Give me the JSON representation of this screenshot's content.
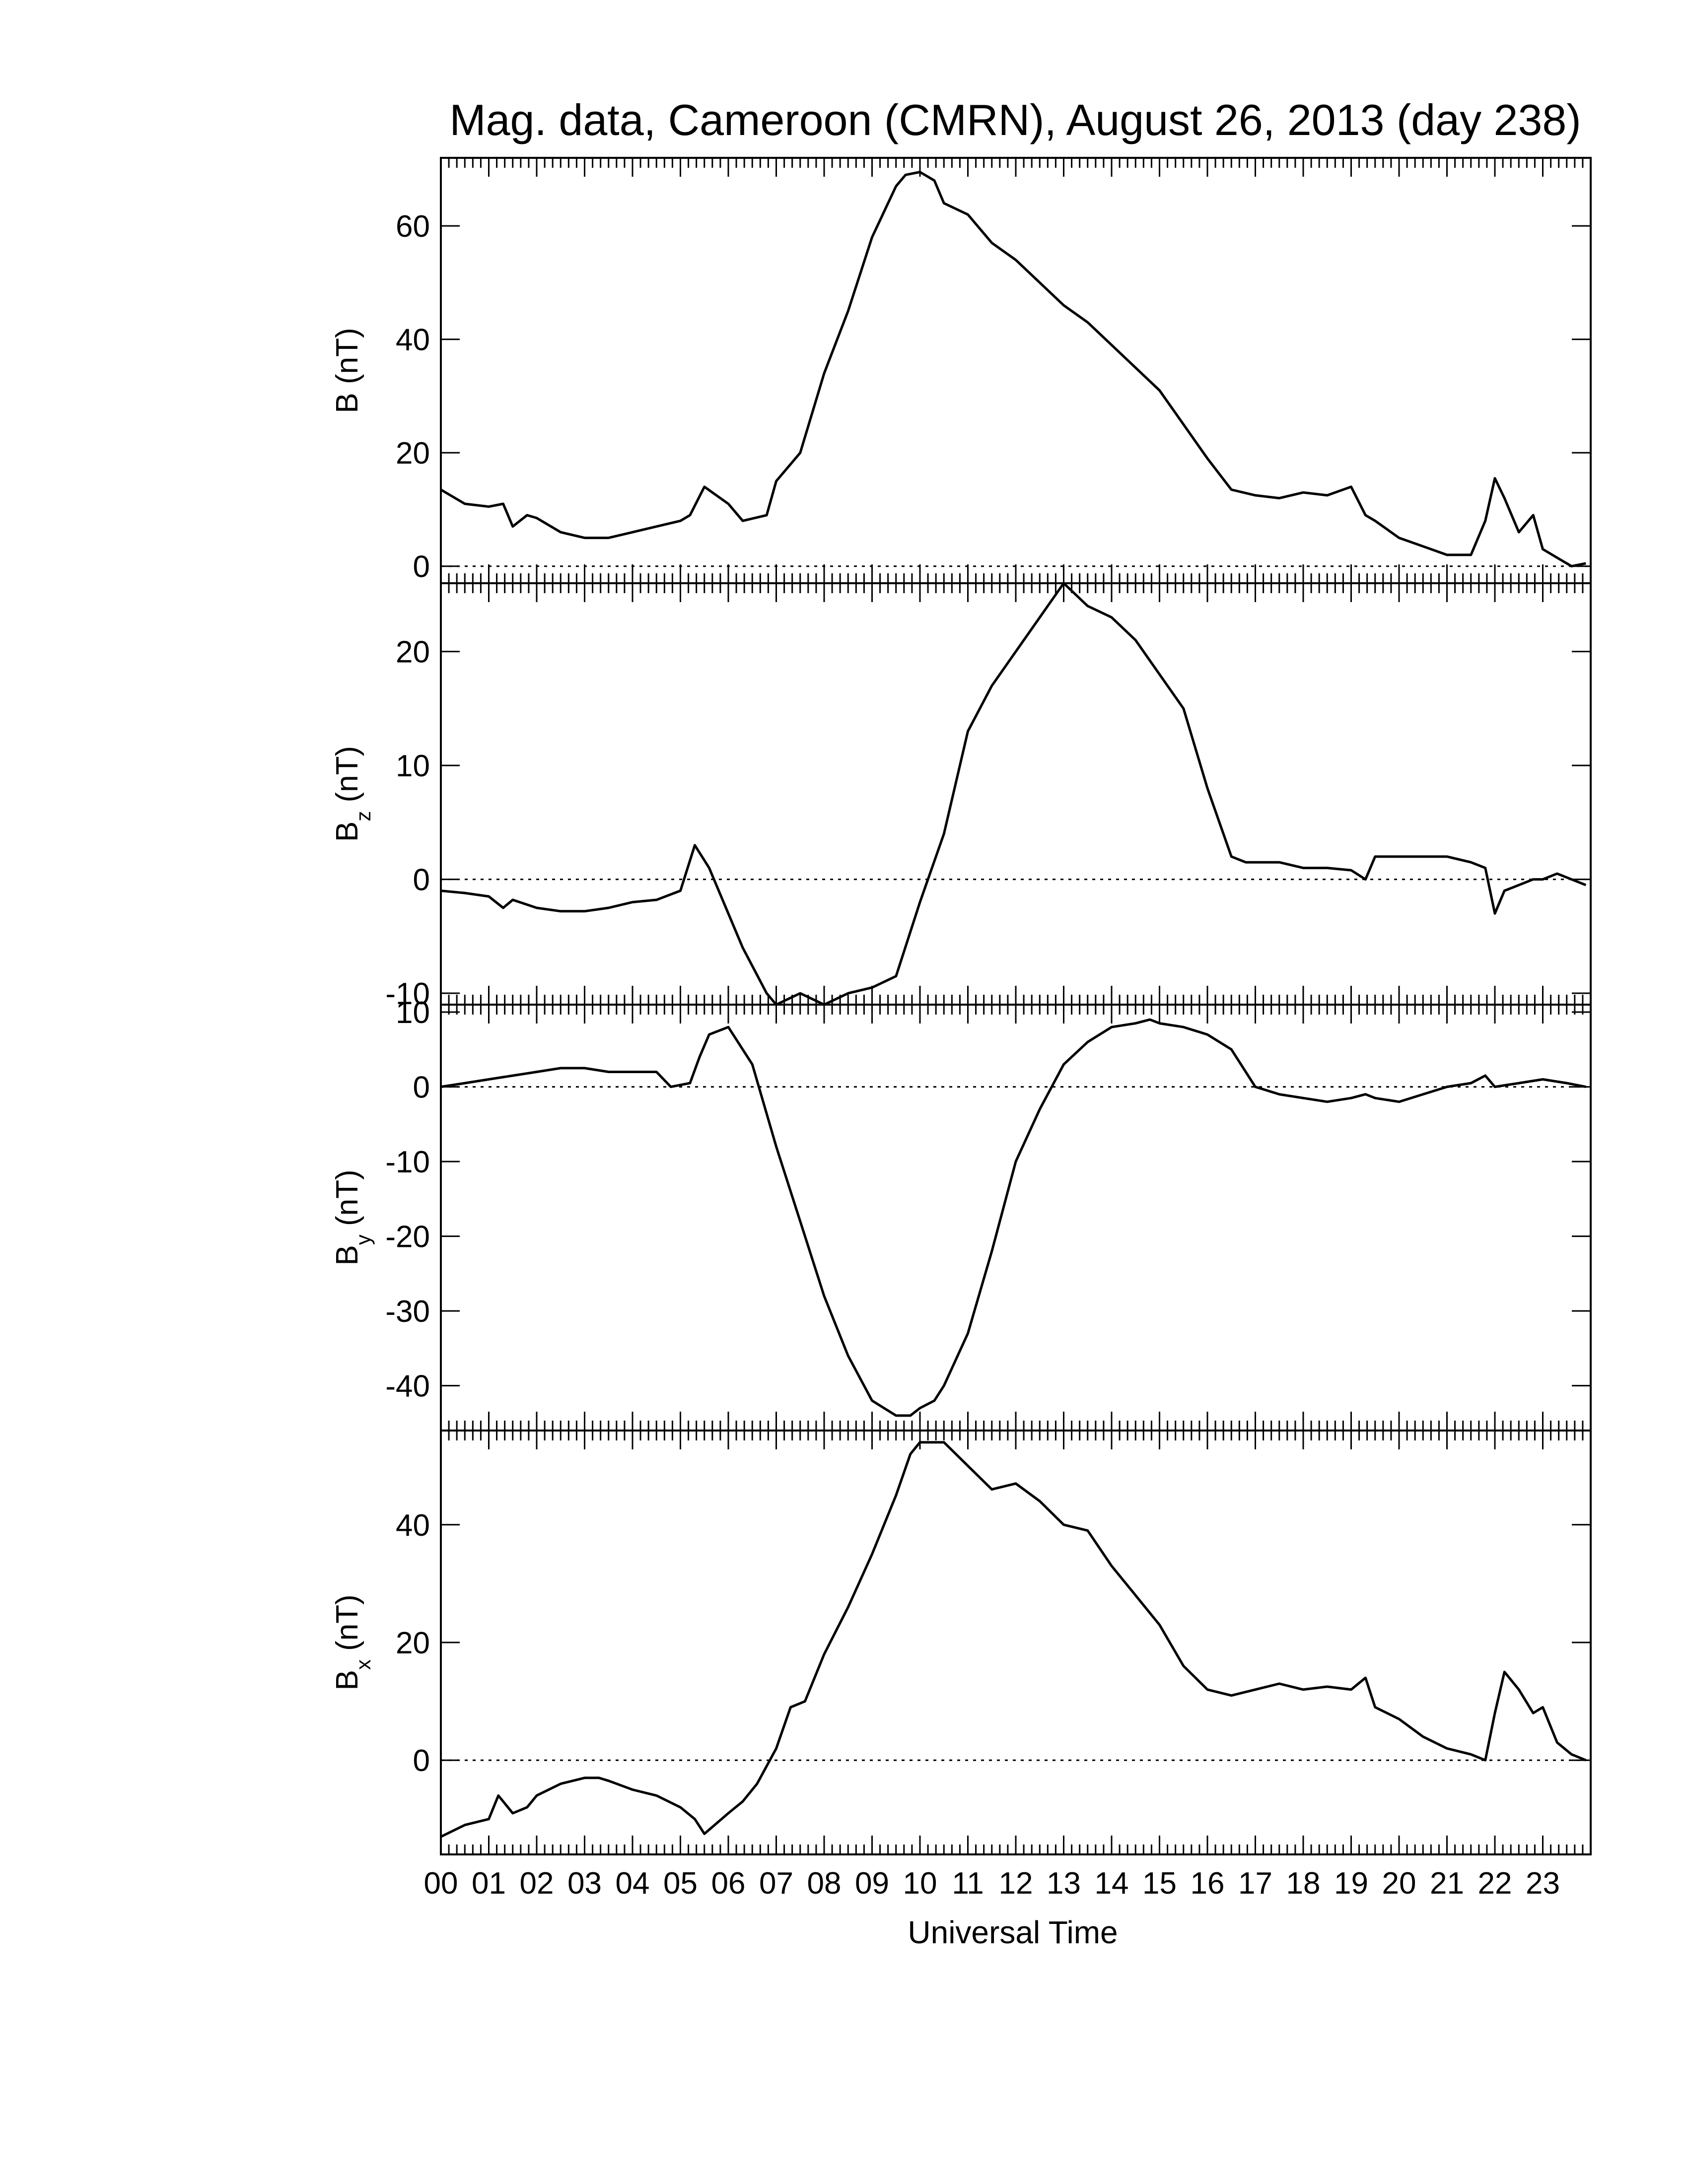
{
  "title": "Mag. data, Cameroon (CMRN), August 26, 2013 (day 238)",
  "xlabel": "Universal Time",
  "x_tick_labels": [
    "00",
    "01",
    "02",
    "03",
    "04",
    "05",
    "06",
    "07",
    "08",
    "09",
    "10",
    "11",
    "12",
    "13",
    "14",
    "15",
    "16",
    "17",
    "18",
    "19",
    "20",
    "21",
    "22",
    "23"
  ],
  "chart_data": [
    {
      "type": "line",
      "ylabel": "B (nT)",
      "ylabel_main": "B",
      "ylabel_sub": "",
      "ylabel_unit": " (nT)",
      "xlim": [
        0,
        24
      ],
      "ylim": [
        -3,
        72
      ],
      "yticks": [
        0,
        20,
        40,
        60
      ],
      "x": [
        0,
        0.5,
        1,
        1.3,
        1.5,
        1.8,
        2,
        2.5,
        3,
        3.5,
        4,
        4.5,
        5,
        5.2,
        5.5,
        6,
        6.3,
        6.8,
        7,
        7.5,
        8,
        8.5,
        9,
        9.5,
        9.7,
        10,
        10.3,
        10.5,
        11,
        11.5,
        12,
        12.5,
        13,
        13.5,
        14,
        14.5,
        15,
        15.5,
        16,
        16.5,
        17,
        17.5,
        18,
        18.5,
        19,
        19.3,
        19.5,
        20,
        20.5,
        21,
        21.5,
        21.8,
        22,
        22.2,
        22.5,
        22.8,
        23,
        23.3,
        23.6,
        23.9
      ],
      "y": [
        13.5,
        11,
        10.5,
        11,
        7,
        9,
        8.5,
        6,
        5,
        5,
        6,
        7,
        8,
        9,
        14,
        11,
        8,
        9,
        15,
        20,
        34,
        45,
        58,
        67,
        69,
        69.5,
        68,
        64,
        62,
        57,
        54,
        50,
        46,
        43,
        39,
        35,
        31,
        25,
        19,
        13.5,
        12.5,
        12,
        13,
        12.5,
        14,
        9,
        8,
        5,
        3.5,
        2,
        2,
        8,
        15.5,
        12,
        6,
        9,
        3,
        1.5,
        0,
        0.5
      ]
    },
    {
      "type": "line",
      "ylabel": "Bz (nT)",
      "ylabel_main": "B",
      "ylabel_sub": "z",
      "ylabel_unit": " (nT)",
      "xlim": [
        0,
        24
      ],
      "ylim": [
        -11,
        26
      ],
      "yticks": [
        -10,
        0,
        10,
        20
      ],
      "x": [
        0,
        0.5,
        1,
        1.3,
        1.5,
        2,
        2.5,
        3,
        3.5,
        4,
        4.5,
        5,
        5.3,
        5.6,
        6,
        6.3,
        6.8,
        7,
        7.5,
        8,
        8.5,
        9,
        9.5,
        10,
        10.5,
        11,
        11.5,
        12,
        12.5,
        13,
        13.5,
        14,
        14.5,
        15,
        15.5,
        16,
        16.5,
        16.8,
        17,
        17.5,
        18,
        18.5,
        19,
        19.3,
        19.5,
        20,
        20.5,
        21,
        21.5,
        21.8,
        22,
        22.2,
        22.5,
        22.8,
        23,
        23.3,
        23.6,
        23.9
      ],
      "y": [
        -1,
        -1.2,
        -1.5,
        -2.5,
        -1.8,
        -2.5,
        -2.8,
        -2.8,
        -2.5,
        -2,
        -1.8,
        -1,
        3,
        1,
        -3,
        -6,
        -10,
        -11,
        -10,
        -11,
        -10,
        -9.5,
        -8.5,
        -2,
        4,
        13,
        17,
        20,
        23,
        26,
        24,
        23,
        21,
        18,
        15,
        8,
        2,
        1.5,
        1.5,
        1.5,
        1,
        1,
        0.8,
        0,
        2,
        2,
        2,
        2,
        1.5,
        1,
        -3,
        -1,
        -0.5,
        0,
        0,
        0.5,
        0,
        -0.5
      ]
    },
    {
      "type": "line",
      "ylabel": "By (nT)",
      "ylabel_main": "B",
      "ylabel_sub": "y",
      "ylabel_unit": " (nT)",
      "xlim": [
        0,
        24
      ],
      "ylim": [
        -46,
        11
      ],
      "yticks": [
        -40,
        -30,
        -20,
        -10,
        0,
        10
      ],
      "x": [
        0,
        0.5,
        1,
        1.5,
        2,
        2.5,
        3,
        3.5,
        4,
        4.5,
        4.8,
        5.2,
        5.4,
        5.6,
        6,
        6.5,
        7,
        7.5,
        8,
        8.5,
        9,
        9.5,
        9.8,
        10,
        10.3,
        10.5,
        11,
        11.5,
        12,
        12.5,
        13,
        13.5,
        14,
        14.5,
        14.8,
        15,
        15.5,
        16,
        16.5,
        17,
        17.5,
        18,
        18.5,
        19,
        19.3,
        19.5,
        20,
        20.5,
        21,
        21.5,
        21.8,
        22,
        22.5,
        23,
        23.5,
        23.9
      ],
      "y": [
        0,
        0.5,
        1,
        1.5,
        2,
        2.5,
        2.5,
        2,
        2,
        2,
        0,
        0.5,
        4,
        7,
        8,
        3,
        -8,
        -18,
        -28,
        -36,
        -42,
        -44,
        -44,
        -43,
        -42,
        -40,
        -33,
        -22,
        -10,
        -3,
        3,
        6,
        8,
        8.5,
        9,
        8.5,
        8,
        7,
        5,
        0,
        -1,
        -1.5,
        -2,
        -1.5,
        -1,
        -1.5,
        -2,
        -1,
        0,
        0.5,
        1.5,
        0,
        0.5,
        1,
        0.5,
        0
      ]
    },
    {
      "type": "line",
      "ylabel": "Bx (nT)",
      "ylabel_main": "B",
      "ylabel_sub": "x",
      "ylabel_unit": " (nT)",
      "xlim": [
        0,
        24
      ],
      "ylim": [
        -16,
        56
      ],
      "yticks": [
        0,
        20,
        40
      ],
      "x": [
        0,
        0.5,
        1,
        1.2,
        1.5,
        1.8,
        2,
        2.5,
        3,
        3.3,
        3.5,
        4,
        4.5,
        5,
        5.3,
        5.5,
        6,
        6.3,
        6.6,
        7,
        7.3,
        7.6,
        8,
        8.5,
        9,
        9.5,
        9.8,
        10,
        10.5,
        11,
        11.5,
        12,
        12.5,
        13,
        13.5,
        14,
        14.5,
        15,
        15.5,
        16,
        16.5,
        17,
        17.5,
        18,
        18.5,
        19,
        19.3,
        19.5,
        20,
        20.5,
        21,
        21.5,
        21.8,
        22,
        22.2,
        22.5,
        22.8,
        23,
        23.3,
        23.6,
        23.9
      ],
      "y": [
        -13,
        -11,
        -10,
        -6,
        -9,
        -8,
        -6,
        -4,
        -3,
        -3,
        -3.5,
        -5,
        -6,
        -8,
        -10,
        -12.5,
        -9,
        -7,
        -4,
        2,
        9,
        10,
        18,
        26,
        35,
        45,
        52,
        54,
        54,
        50,
        46,
        47,
        44,
        40,
        39,
        33,
        28,
        23,
        16,
        12,
        11,
        12,
        13,
        12,
        12.5,
        12,
        14,
        9,
        7,
        4,
        2,
        1,
        0,
        8,
        15,
        12,
        8,
        9,
        3,
        1,
        0
      ]
    }
  ]
}
